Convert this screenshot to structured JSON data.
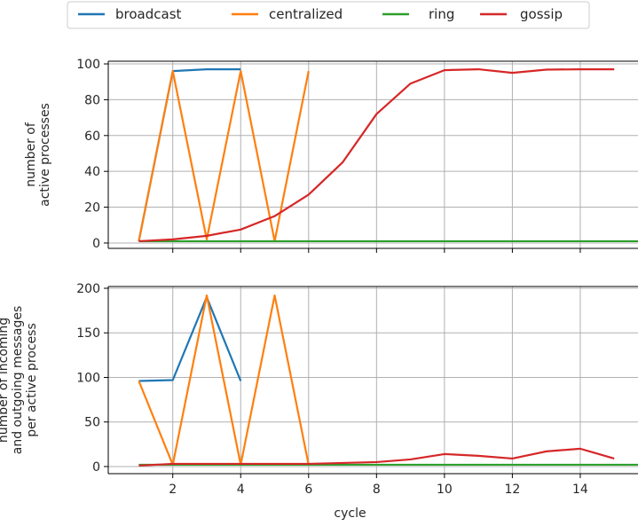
{
  "chart_data": [
    {
      "type": "line",
      "ylabel": [
        "number of",
        "active processes"
      ],
      "xlim": [
        0.1,
        15.7
      ],
      "ylim": [
        -3,
        101.5
      ],
      "xticks": [
        2,
        4,
        6,
        8,
        10,
        12,
        14
      ],
      "yticks": [
        0,
        20,
        40,
        60,
        80,
        100
      ],
      "grid": true,
      "series": [
        {
          "name": "broadcast",
          "color": "#1f77b4",
          "x": [
            1,
            2,
            3,
            4
          ],
          "y": [
            1,
            96,
            97,
            97
          ]
        },
        {
          "name": "centralized",
          "color": "#ff7f0e",
          "x": [
            1,
            2,
            3,
            4,
            5,
            6
          ],
          "y": [
            1,
            96,
            2,
            96,
            1,
            96
          ]
        },
        {
          "name": "ring",
          "color": "#2ca02c",
          "x": [
            1,
            2,
            3,
            4,
            5,
            6,
            7,
            8,
            9,
            10,
            11,
            12,
            13,
            14,
            15,
            16
          ],
          "y": [
            1,
            1,
            1,
            1,
            1,
            1,
            1,
            1,
            1,
            1,
            1,
            1,
            1,
            1,
            1,
            1
          ]
        },
        {
          "name": "gossip",
          "color": "#d62728",
          "x": [
            1,
            2,
            3,
            4,
            5,
            6,
            7,
            8,
            9,
            10,
            11,
            12,
            13,
            14,
            15
          ],
          "y": [
            1,
            2,
            4,
            7.5,
            15,
            27,
            45,
            72,
            89,
            96.5,
            97,
            95,
            96.8,
            97,
            97
          ]
        }
      ]
    },
    {
      "type": "line",
      "xlabel": "cycle",
      "ylabel": [
        "number of incoming",
        "and outgoing messages",
        "per active process"
      ],
      "xlim": [
        0.1,
        15.7
      ],
      "ylim": [
        -8,
        202
      ],
      "xticks": [
        2,
        4,
        6,
        8,
        10,
        12,
        14
      ],
      "yticks": [
        0,
        50,
        100,
        150,
        200
      ],
      "grid": true,
      "series": [
        {
          "name": "broadcast",
          "color": "#1f77b4",
          "x": [
            1,
            2,
            3,
            4
          ],
          "y": [
            96,
            97,
            190,
            96
          ]
        },
        {
          "name": "centralized",
          "color": "#ff7f0e",
          "x": [
            1,
            2,
            3,
            4,
            5,
            6
          ],
          "y": [
            96,
            2,
            192,
            2,
            192,
            2
          ]
        },
        {
          "name": "ring",
          "color": "#2ca02c",
          "x": [
            1,
            2,
            3,
            4,
            5,
            6,
            7,
            8,
            9,
            10,
            11,
            12,
            13,
            14,
            15,
            16
          ],
          "y": [
            2,
            2,
            2,
            2,
            2,
            2,
            2,
            2,
            2,
            2,
            2,
            2,
            2,
            2,
            2,
            2
          ]
        },
        {
          "name": "gossip",
          "color": "#d62728",
          "x": [
            1,
            2,
            3,
            4,
            5,
            6,
            7,
            8,
            9,
            10,
            11,
            12,
            13,
            14,
            15
          ],
          "y": [
            1,
            3,
            3,
            3,
            3,
            3,
            4,
            5,
            8,
            14,
            12,
            9,
            17,
            20,
            9
          ]
        }
      ]
    }
  ],
  "legend": {
    "placement": "top-center",
    "entries": [
      {
        "label": "broadcast",
        "color": "#1f77b4"
      },
      {
        "label": "centralized",
        "color": "#ff7f0e"
      },
      {
        "label": "ring",
        "color": "#2ca02c"
      },
      {
        "label": "gossip",
        "color": "#d62728"
      }
    ]
  }
}
